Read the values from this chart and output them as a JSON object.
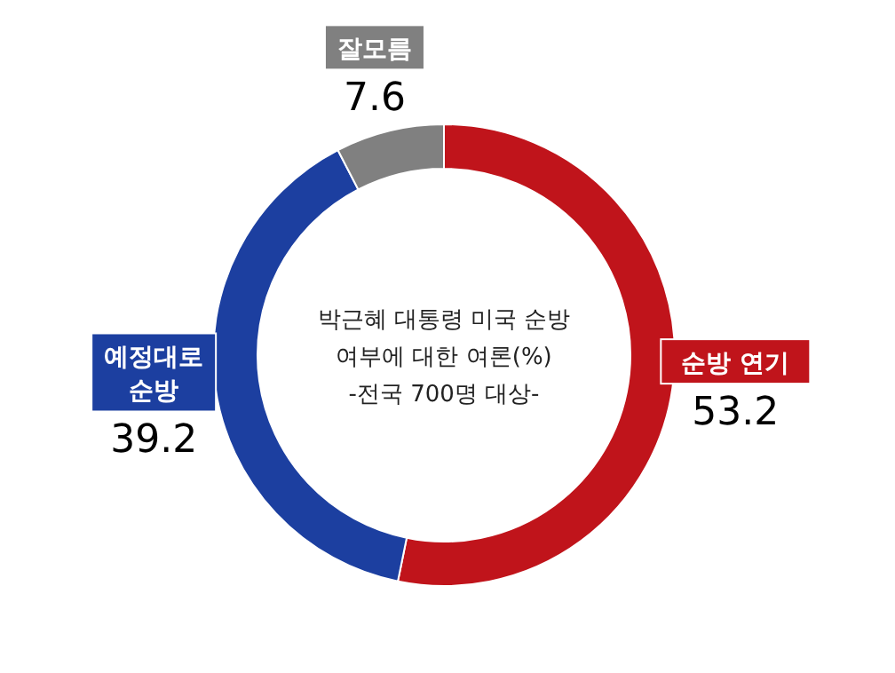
{
  "chart_data": {
    "type": "donut",
    "title": "박근혜 대통령 미국 순방 여부에 대한 여론(%)",
    "subtitle": "-전국 700명 대상-",
    "categories": [
      "순방 연기",
      "예정대로 순방",
      "잘모름"
    ],
    "values": [
      53.2,
      39.2,
      7.6
    ],
    "colors": [
      "#c0141b",
      "#1c3fa0",
      "#808080"
    ],
    "data_labels": true
  }
}
